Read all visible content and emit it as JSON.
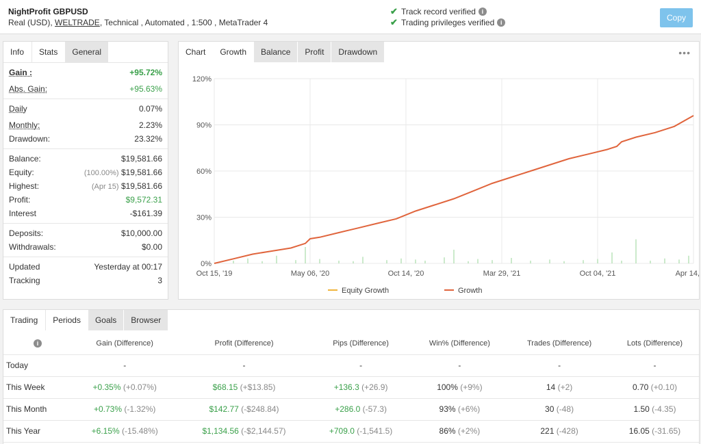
{
  "header": {
    "title": "NightProfit GBPUSD",
    "account_type": "Real (USD),",
    "broker": "WELTRADE",
    "details": ", Technical , Automated , 1:500 , MetaTrader 4",
    "verified_track": "Track record verified",
    "verified_trading": "Trading privileges verified",
    "copy_label": "Copy"
  },
  "stats_tabs": [
    "Info",
    "Stats",
    "General"
  ],
  "stats": {
    "gain_label": "Gain :",
    "gain": "+95.72%",
    "abs_gain_label": "Abs. Gain:",
    "abs_gain": "+95.63%",
    "daily_label": "Daily",
    "daily": "0.07%",
    "monthly_label": "Monthly:",
    "monthly": "2.23%",
    "drawdown_label": "Drawdown:",
    "drawdown": "23.32%",
    "balance_label": "Balance:",
    "balance": "$19,581.66",
    "equity_label": "Equity:",
    "equity_pct": "(100.00%)",
    "equity": "$19,581.66",
    "highest_label": "Highest:",
    "highest_date": "(Apr 15)",
    "highest": "$19,581.66",
    "profit_label": "Profit:",
    "profit": "$9,572.31",
    "interest_label": "Interest",
    "interest": "-$161.39",
    "deposits_label": "Deposits:",
    "deposits": "$10,000.00",
    "withdrawals_label": "Withdrawals:",
    "withdrawals": "$0.00",
    "updated_label": "Updated",
    "updated": "Yesterday at 00:17",
    "tracking_label": "Tracking",
    "tracking": "3"
  },
  "chart_tabs": [
    "Chart",
    "Growth",
    "Balance",
    "Profit",
    "Drawdown"
  ],
  "chart_data": {
    "type": "line",
    "x_ticks": [
      "Oct 15, '19",
      "May 06, '20",
      "Oct 14, '20",
      "Mar 29, '21",
      "Oct 04, '21",
      "Apr 14, '22"
    ],
    "y_ticks": [
      "0%",
      "30%",
      "60%",
      "90%",
      "120%"
    ],
    "ylim": [
      0,
      120
    ],
    "legend": [
      "Equity Growth",
      "Growth"
    ],
    "legend_position": "bottom",
    "grid": true,
    "colors": {
      "growth": "#e0643c",
      "equity": "#f0b43c",
      "bars": "#a8dba8"
    },
    "series": [
      {
        "name": "Growth",
        "x": [
          0,
          0.04,
          0.08,
          0.12,
          0.16,
          0.19,
          0.2,
          0.22,
          0.26,
          0.3,
          0.34,
          0.38,
          0.42,
          0.46,
          0.5,
          0.54,
          0.58,
          0.62,
          0.66,
          0.7,
          0.74,
          0.78,
          0.82,
          0.84,
          0.85,
          0.88,
          0.92,
          0.96,
          1.0
        ],
        "y": [
          0,
          3,
          6,
          8,
          10,
          13,
          16,
          17,
          20,
          23,
          26,
          29,
          34,
          38,
          42,
          47,
          52,
          56,
          60,
          64,
          68,
          71,
          74,
          76,
          79,
          82,
          85,
          89,
          96
        ]
      }
    ],
    "bars": [
      0.04,
      0.07,
      0.1,
      0.13,
      0.17,
      0.19,
      0.22,
      0.26,
      0.29,
      0.31,
      0.36,
      0.39,
      0.42,
      0.44,
      0.48,
      0.5,
      0.53,
      0.55,
      0.58,
      0.62,
      0.66,
      0.7,
      0.73,
      0.77,
      0.8,
      0.83,
      0.85,
      0.88,
      0.91,
      0.94,
      0.97,
      0.99
    ]
  },
  "periods_tabs": [
    "Trading",
    "Periods",
    "Goals",
    "Browser"
  ],
  "periods": {
    "columns": [
      "Gain (Difference)",
      "Profit (Difference)",
      "Pips (Difference)",
      "Win% (Difference)",
      "Trades (Difference)",
      "Lots (Difference)"
    ],
    "rows": [
      {
        "label": "Today",
        "cells": [
          [
            "-",
            ""
          ],
          [
            "-",
            ""
          ],
          [
            "-",
            ""
          ],
          [
            "-",
            ""
          ],
          [
            "-",
            ""
          ],
          [
            "-",
            ""
          ]
        ]
      },
      {
        "label": "This Week",
        "cells": [
          [
            "+0.35%",
            "(+0.07%)"
          ],
          [
            "$68.15",
            "(+$13.85)"
          ],
          [
            "+136.3",
            "(+26.9)"
          ],
          [
            "100%",
            "(+9%)"
          ],
          [
            "14",
            "(+2)"
          ],
          [
            "0.70",
            "(+0.10)"
          ]
        ]
      },
      {
        "label": "This Month",
        "cells": [
          [
            "+0.73%",
            "(-1.32%)"
          ],
          [
            "$142.77",
            "(-$248.84)"
          ],
          [
            "+286.0",
            "(-57.3)"
          ],
          [
            "93%",
            "(+6%)"
          ],
          [
            "30",
            "(-48)"
          ],
          [
            "1.50",
            "(-4.35)"
          ]
        ]
      },
      {
        "label": "This Year",
        "cells": [
          [
            "+6.15%",
            "(-15.48%)"
          ],
          [
            "$1,134.56",
            "(-$2,144.57)"
          ],
          [
            "+709.0",
            "(-1,541.5)"
          ],
          [
            "86%",
            "(+2%)"
          ],
          [
            "221",
            "(-428)"
          ],
          [
            "16.05",
            "(-31.65)"
          ]
        ]
      }
    ]
  }
}
